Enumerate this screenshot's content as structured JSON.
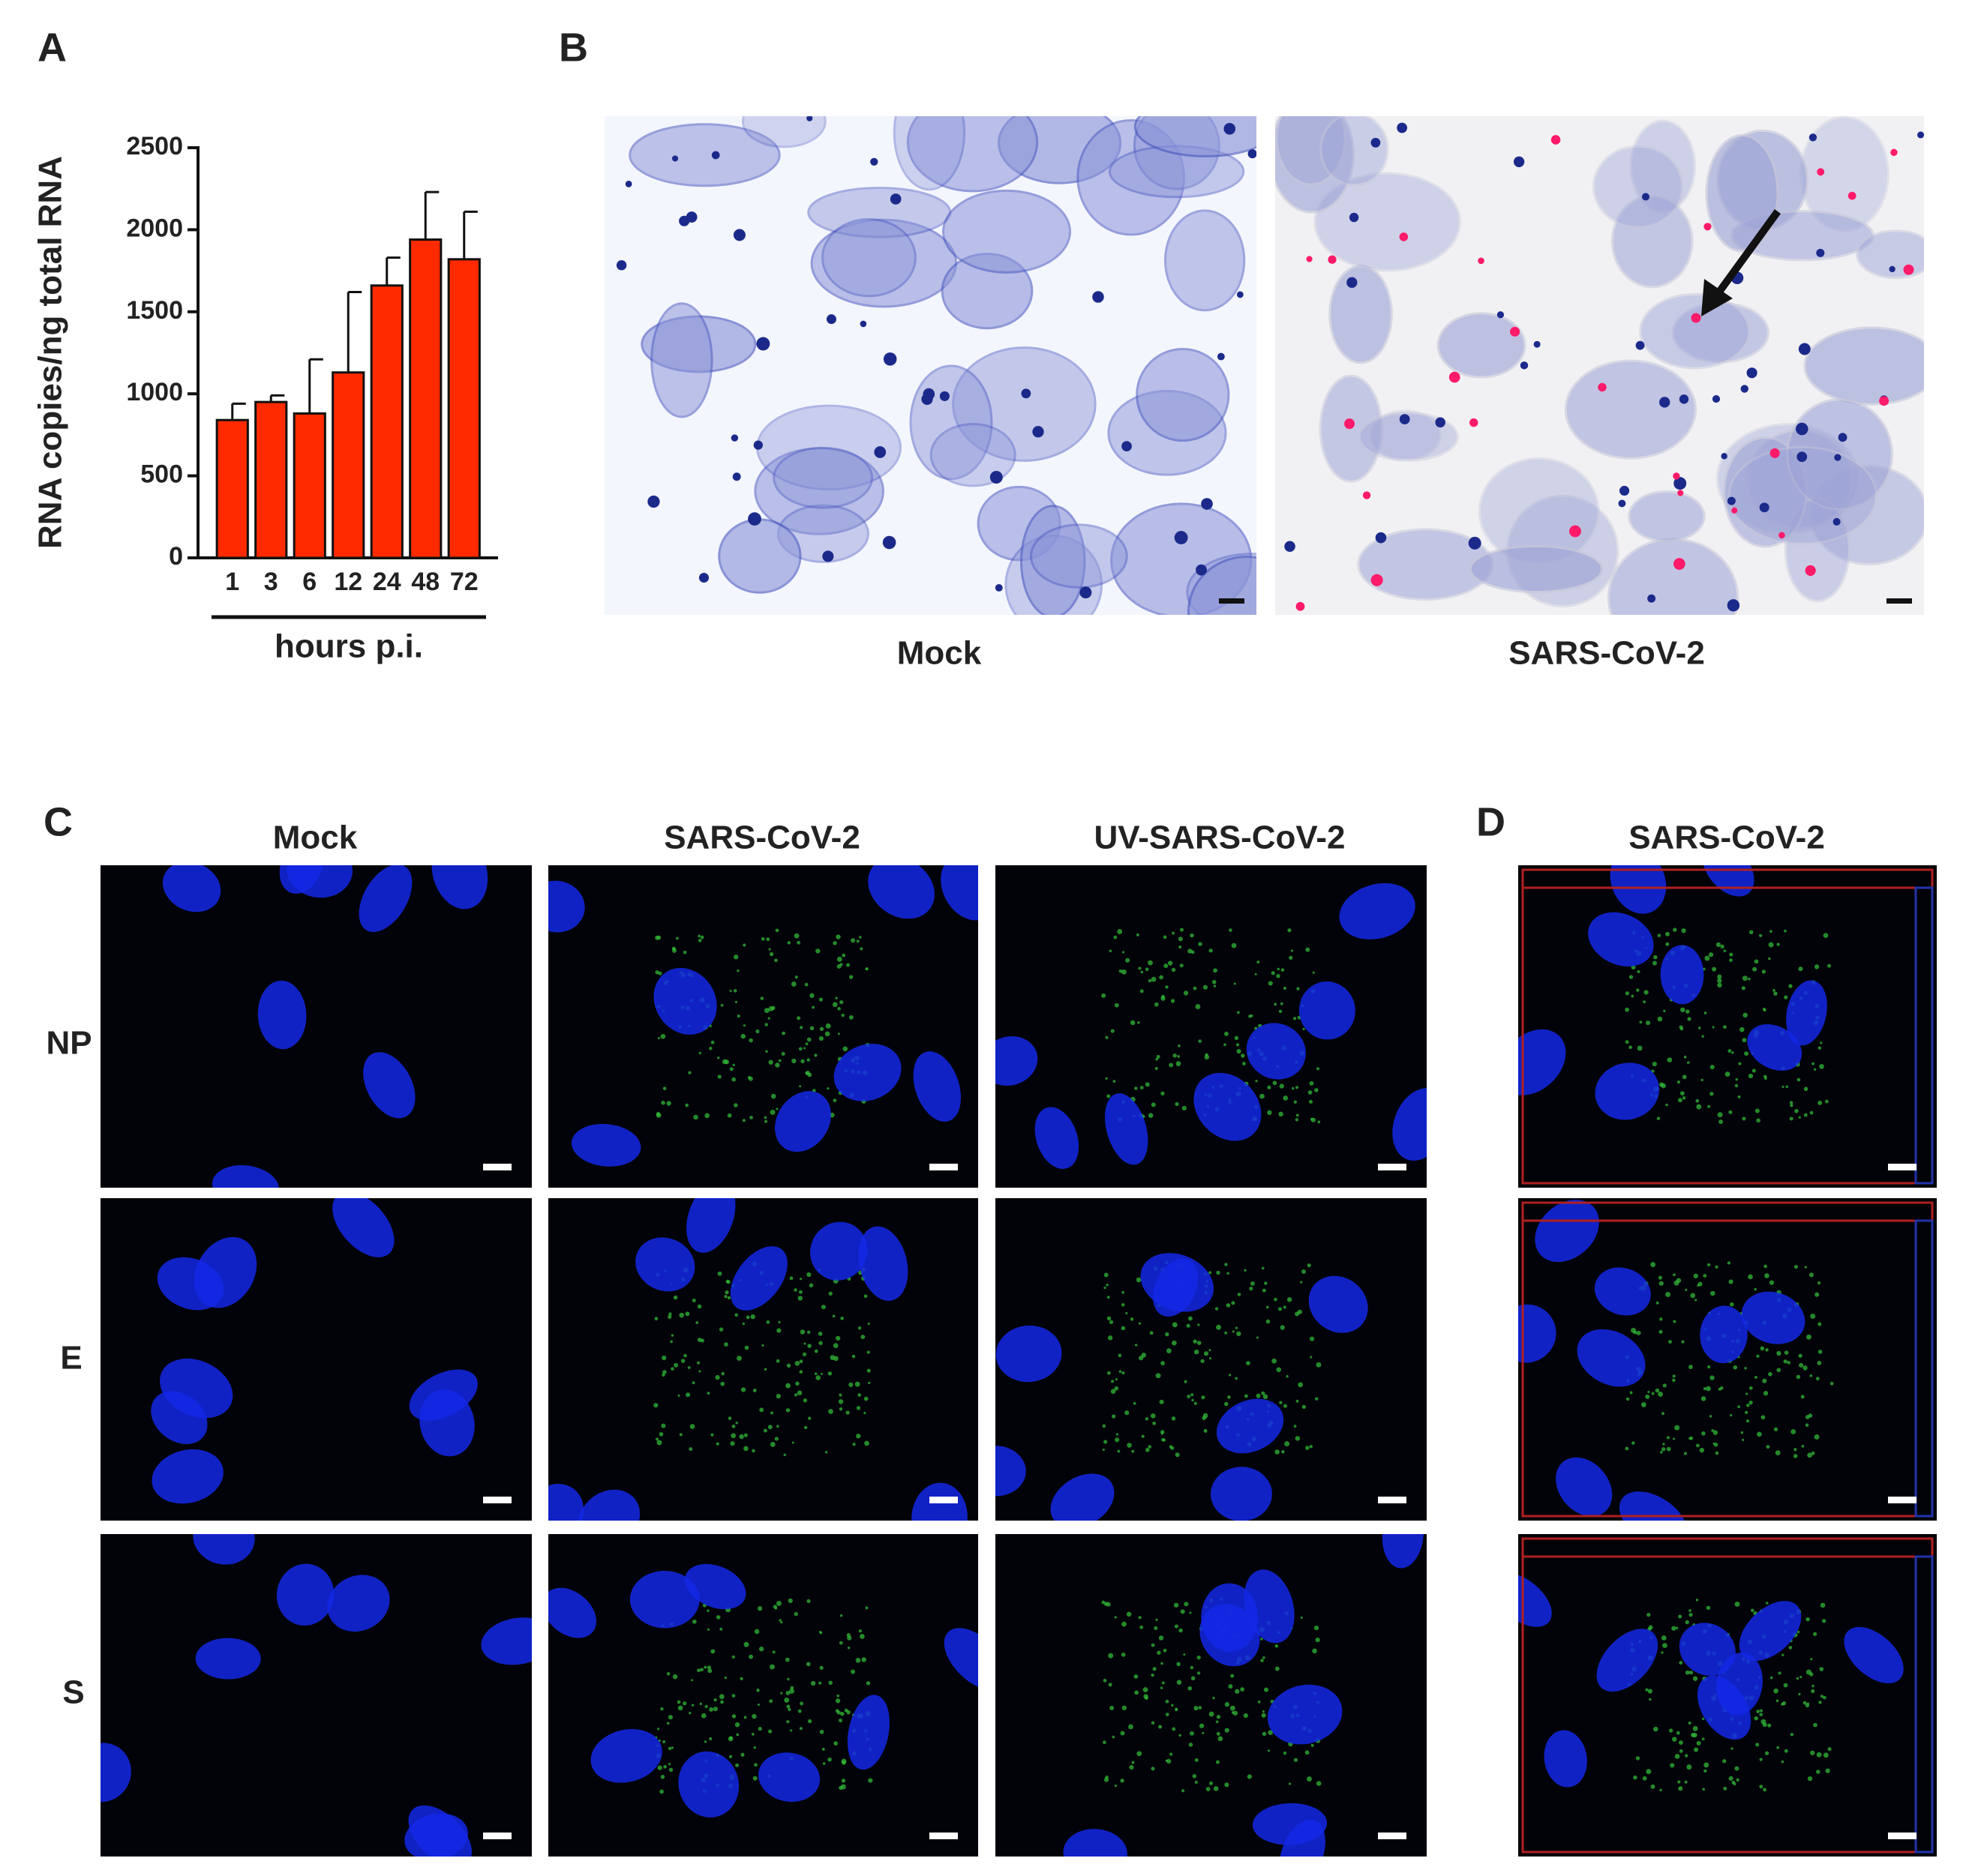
{
  "panel_labels": [
    "A",
    "B",
    "C",
    "D"
  ],
  "chart_data": {
    "type": "bar",
    "y_label": "RNA copies/ng total RNA",
    "x_label": "hours p.i.",
    "categories": [
      "1",
      "3",
      "6",
      "12",
      "24",
      "48",
      "72"
    ],
    "values": [
      840,
      950,
      880,
      1130,
      1660,
      1940,
      1820
    ],
    "errors": [
      100,
      40,
      330,
      490,
      170,
      290,
      290
    ],
    "color": "#ff2a00",
    "ylim": [
      0,
      2500
    ],
    "yticks": [
      0,
      500,
      1000,
      1500,
      2000,
      2500
    ]
  },
  "panel_b": {
    "captions": [
      "Mock",
      "SARS-CoV-2"
    ]
  },
  "panel_c": {
    "columns": [
      "Mock",
      "SARS-CoV-2",
      "UV-SARS-CoV-2"
    ],
    "rows": [
      "NP",
      "E",
      "S"
    ]
  },
  "panel_d": {
    "column": "SARS-CoV-2"
  }
}
